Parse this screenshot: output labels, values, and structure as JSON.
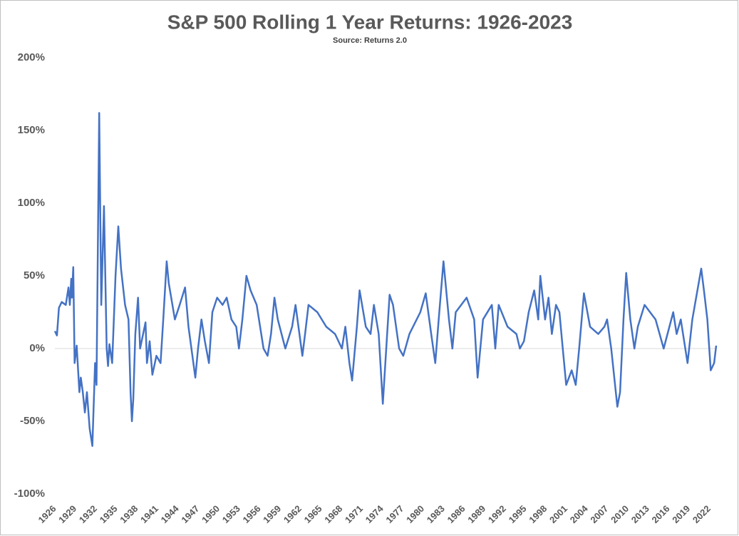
{
  "chart_data": {
    "type": "line",
    "title": "S&P 500 Rolling 1 Year Returns: 1926-2023",
    "subtitle": "Source: Returns 2.0",
    "x": [
      1926.0,
      1926.3,
      1926.6,
      1927.0,
      1927.6,
      1928.0,
      1928.2,
      1928.4,
      1928.5,
      1928.7,
      1928.9,
      1929.2,
      1929.6,
      1929.8,
      1930.1,
      1930.4,
      1930.7,
      1931.1,
      1931.5,
      1931.9,
      1932.1,
      1932.5,
      1932.8,
      1933.2,
      1933.6,
      1933.8,
      1934.0,
      1934.4,
      1934.9,
      1935.3,
      1935.7,
      1936.3,
      1936.8,
      1937.1,
      1937.3,
      1937.5,
      1937.8,
      1938.2,
      1938.5,
      1939.3,
      1939.5,
      1939.9,
      1940.3,
      1940.9,
      1941.5,
      1941.9,
      1942.4,
      1942.7,
      1943.6,
      1944.3,
      1945.1,
      1945.6,
      1946.6,
      1947.0,
      1947.5,
      1948.0,
      1948.6,
      1949.1,
      1949.8,
      1950.6,
      1951.2,
      1951.9,
      1952.6,
      1953.0,
      1953.5,
      1954.1,
      1954.7,
      1955.6,
      1956.6,
      1957.2,
      1957.7,
      1958.2,
      1958.7,
      1959.8,
      1960.8,
      1961.3,
      1962.3,
      1962.7,
      1963.2,
      1964.5,
      1965.8,
      1967.1,
      1968.1,
      1968.6,
      1969.2,
      1969.6,
      1970.3,
      1970.7,
      1971.6,
      1972.3,
      1972.8,
      1973.5,
      1974.1,
      1974.6,
      1975.1,
      1975.6,
      1976.5,
      1977.1,
      1978.0,
      1979.6,
      1980.4,
      1981.2,
      1981.8,
      1982.3,
      1983.0,
      1983.3,
      1983.8,
      1984.3,
      1984.8,
      1986.4,
      1987.5,
      1988.0,
      1988.8,
      1990.1,
      1990.6,
      1991.1,
      1992.4,
      1993.7,
      1994.2,
      1994.8,
      1995.5,
      1996.3,
      1996.9,
      1997.2,
      1997.9,
      1998.4,
      1998.9,
      1999.5,
      2000.0,
      2000.5,
      2001.0,
      2001.8,
      2002.4,
      2002.9,
      2003.6,
      2004.5,
      2005.7,
      2006.6,
      2007.0,
      2007.6,
      2008.5,
      2008.9,
      2009.4,
      2009.8,
      2010.4,
      2011.0,
      2011.5,
      2012.5,
      2013.3,
      2014.1,
      2015.3,
      2016.7,
      2017.2,
      2017.8,
      2018.8,
      2019.5,
      2020.8,
      2021.2,
      2021.7,
      2022.2,
      2022.7,
      2023.0
    ],
    "series": [
      {
        "name": "Rolling 1 Year Return",
        "color": "#4472c4",
        "values": [
          12,
          9,
          28,
          32,
          30,
          42,
          30,
          48,
          35,
          56,
          -10,
          2,
          -30,
          -20,
          -30,
          -44,
          -30,
          -55,
          -67,
          -10,
          -25,
          162,
          30,
          98,
          0,
          -12,
          3,
          -10,
          50,
          84,
          55,
          30,
          20,
          -30,
          -50,
          -35,
          10,
          35,
          0,
          18,
          -10,
          5,
          -18,
          -5,
          -10,
          20,
          60,
          45,
          20,
          30,
          42,
          15,
          -20,
          0,
          20,
          5,
          -10,
          25,
          35,
          30,
          35,
          20,
          15,
          0,
          20,
          50,
          40,
          30,
          0,
          -5,
          10,
          35,
          20,
          0,
          15,
          30,
          -5,
          10,
          30,
          25,
          15,
          10,
          0,
          15,
          -10,
          -22,
          15,
          40,
          15,
          10,
          30,
          10,
          -38,
          0,
          37,
          30,
          0,
          -5,
          10,
          25,
          38,
          10,
          -10,
          20,
          60,
          45,
          20,
          0,
          25,
          35,
          20,
          -20,
          20,
          30,
          0,
          30,
          15,
          10,
          0,
          5,
          25,
          40,
          20,
          50,
          20,
          35,
          10,
          30,
          25,
          0,
          -25,
          -15,
          -25,
          0,
          38,
          15,
          10,
          15,
          20,
          0,
          -40,
          -30,
          20,
          52,
          20,
          0,
          15,
          30,
          25,
          20,
          0,
          25,
          10,
          20,
          -10,
          20,
          55,
          40,
          20,
          -15,
          -10,
          2
        ]
      }
    ],
    "xlim": [
      1926,
      2023
    ],
    "xticks": [
      1926,
      1929,
      1932,
      1935,
      1938,
      1941,
      1944,
      1947,
      1950,
      1953,
      1956,
      1959,
      1962,
      1965,
      1968,
      1971,
      1974,
      1977,
      1980,
      1983,
      1986,
      1989,
      1992,
      1995,
      1998,
      2001,
      2004,
      2007,
      2010,
      2013,
      2016,
      2019,
      2022
    ],
    "ylim": [
      -100,
      200
    ],
    "yticks": [
      {
        "value": -100,
        "label": "-100%"
      },
      {
        "value": -50,
        "label": "-50%"
      },
      {
        "value": 0,
        "label": "0%"
      },
      {
        "value": 50,
        "label": "50%"
      },
      {
        "value": 100,
        "label": "100%"
      },
      {
        "value": 150,
        "label": "150%"
      },
      {
        "value": 200,
        "label": "200%"
      }
    ],
    "zero_line": true
  }
}
